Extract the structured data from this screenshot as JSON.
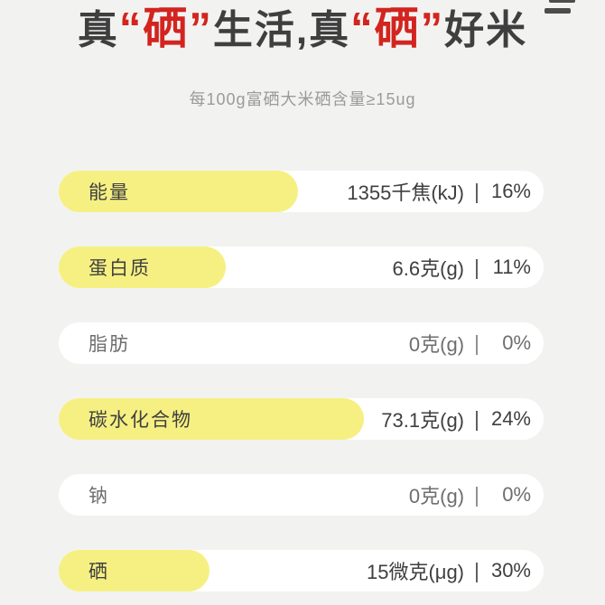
{
  "header": {
    "title_segments": [
      {
        "text": "真",
        "style": "dark"
      },
      {
        "text": "“硒”",
        "style": "red"
      },
      {
        "text": "生活,真",
        "style": "dark"
      },
      {
        "text": "“硒”",
        "style": "red"
      },
      {
        "text": "好米",
        "style": "dark"
      }
    ],
    "subtitle": "每100g富硒大米硒含量≥15ug",
    "menu_icon": "double-bar-icon"
  },
  "nutrition": {
    "divider": "|",
    "rows": [
      {
        "label": "能量",
        "value": "1355千焦(kJ)",
        "nrv": "16%",
        "highlight": true,
        "highlight_width": 265,
        "muted": false
      },
      {
        "label": "蛋白质",
        "value": "6.6克(g)",
        "nrv": "11%",
        "highlight": true,
        "highlight_width": 185,
        "muted": false
      },
      {
        "label": "脂肪",
        "value": "0克(g)",
        "nrv": "0%",
        "highlight": false,
        "highlight_width": 0,
        "muted": true
      },
      {
        "label": "碳水化合物",
        "value": "73.1克(g)",
        "nrv": "24%",
        "highlight": true,
        "highlight_width": 338,
        "muted": false
      },
      {
        "label": "钠",
        "value": "0克(g)",
        "nrv": "0%",
        "highlight": false,
        "highlight_width": 0,
        "muted": true
      },
      {
        "label": "硒",
        "value": "15微克(μg)",
        "nrv": "30%",
        "highlight": true,
        "highlight_width": 167,
        "muted": false
      }
    ]
  },
  "colors": {
    "background": "#f2f3f1",
    "row_background": "#ffffff",
    "highlight_yellow": "#f6f083",
    "accent_red": "#d3241f",
    "text_dark": "#3f3f3f",
    "text_muted": "#6e6e6e",
    "subtitle_gray": "#9a9a9a",
    "icon_gray": "#4c4c4c"
  }
}
